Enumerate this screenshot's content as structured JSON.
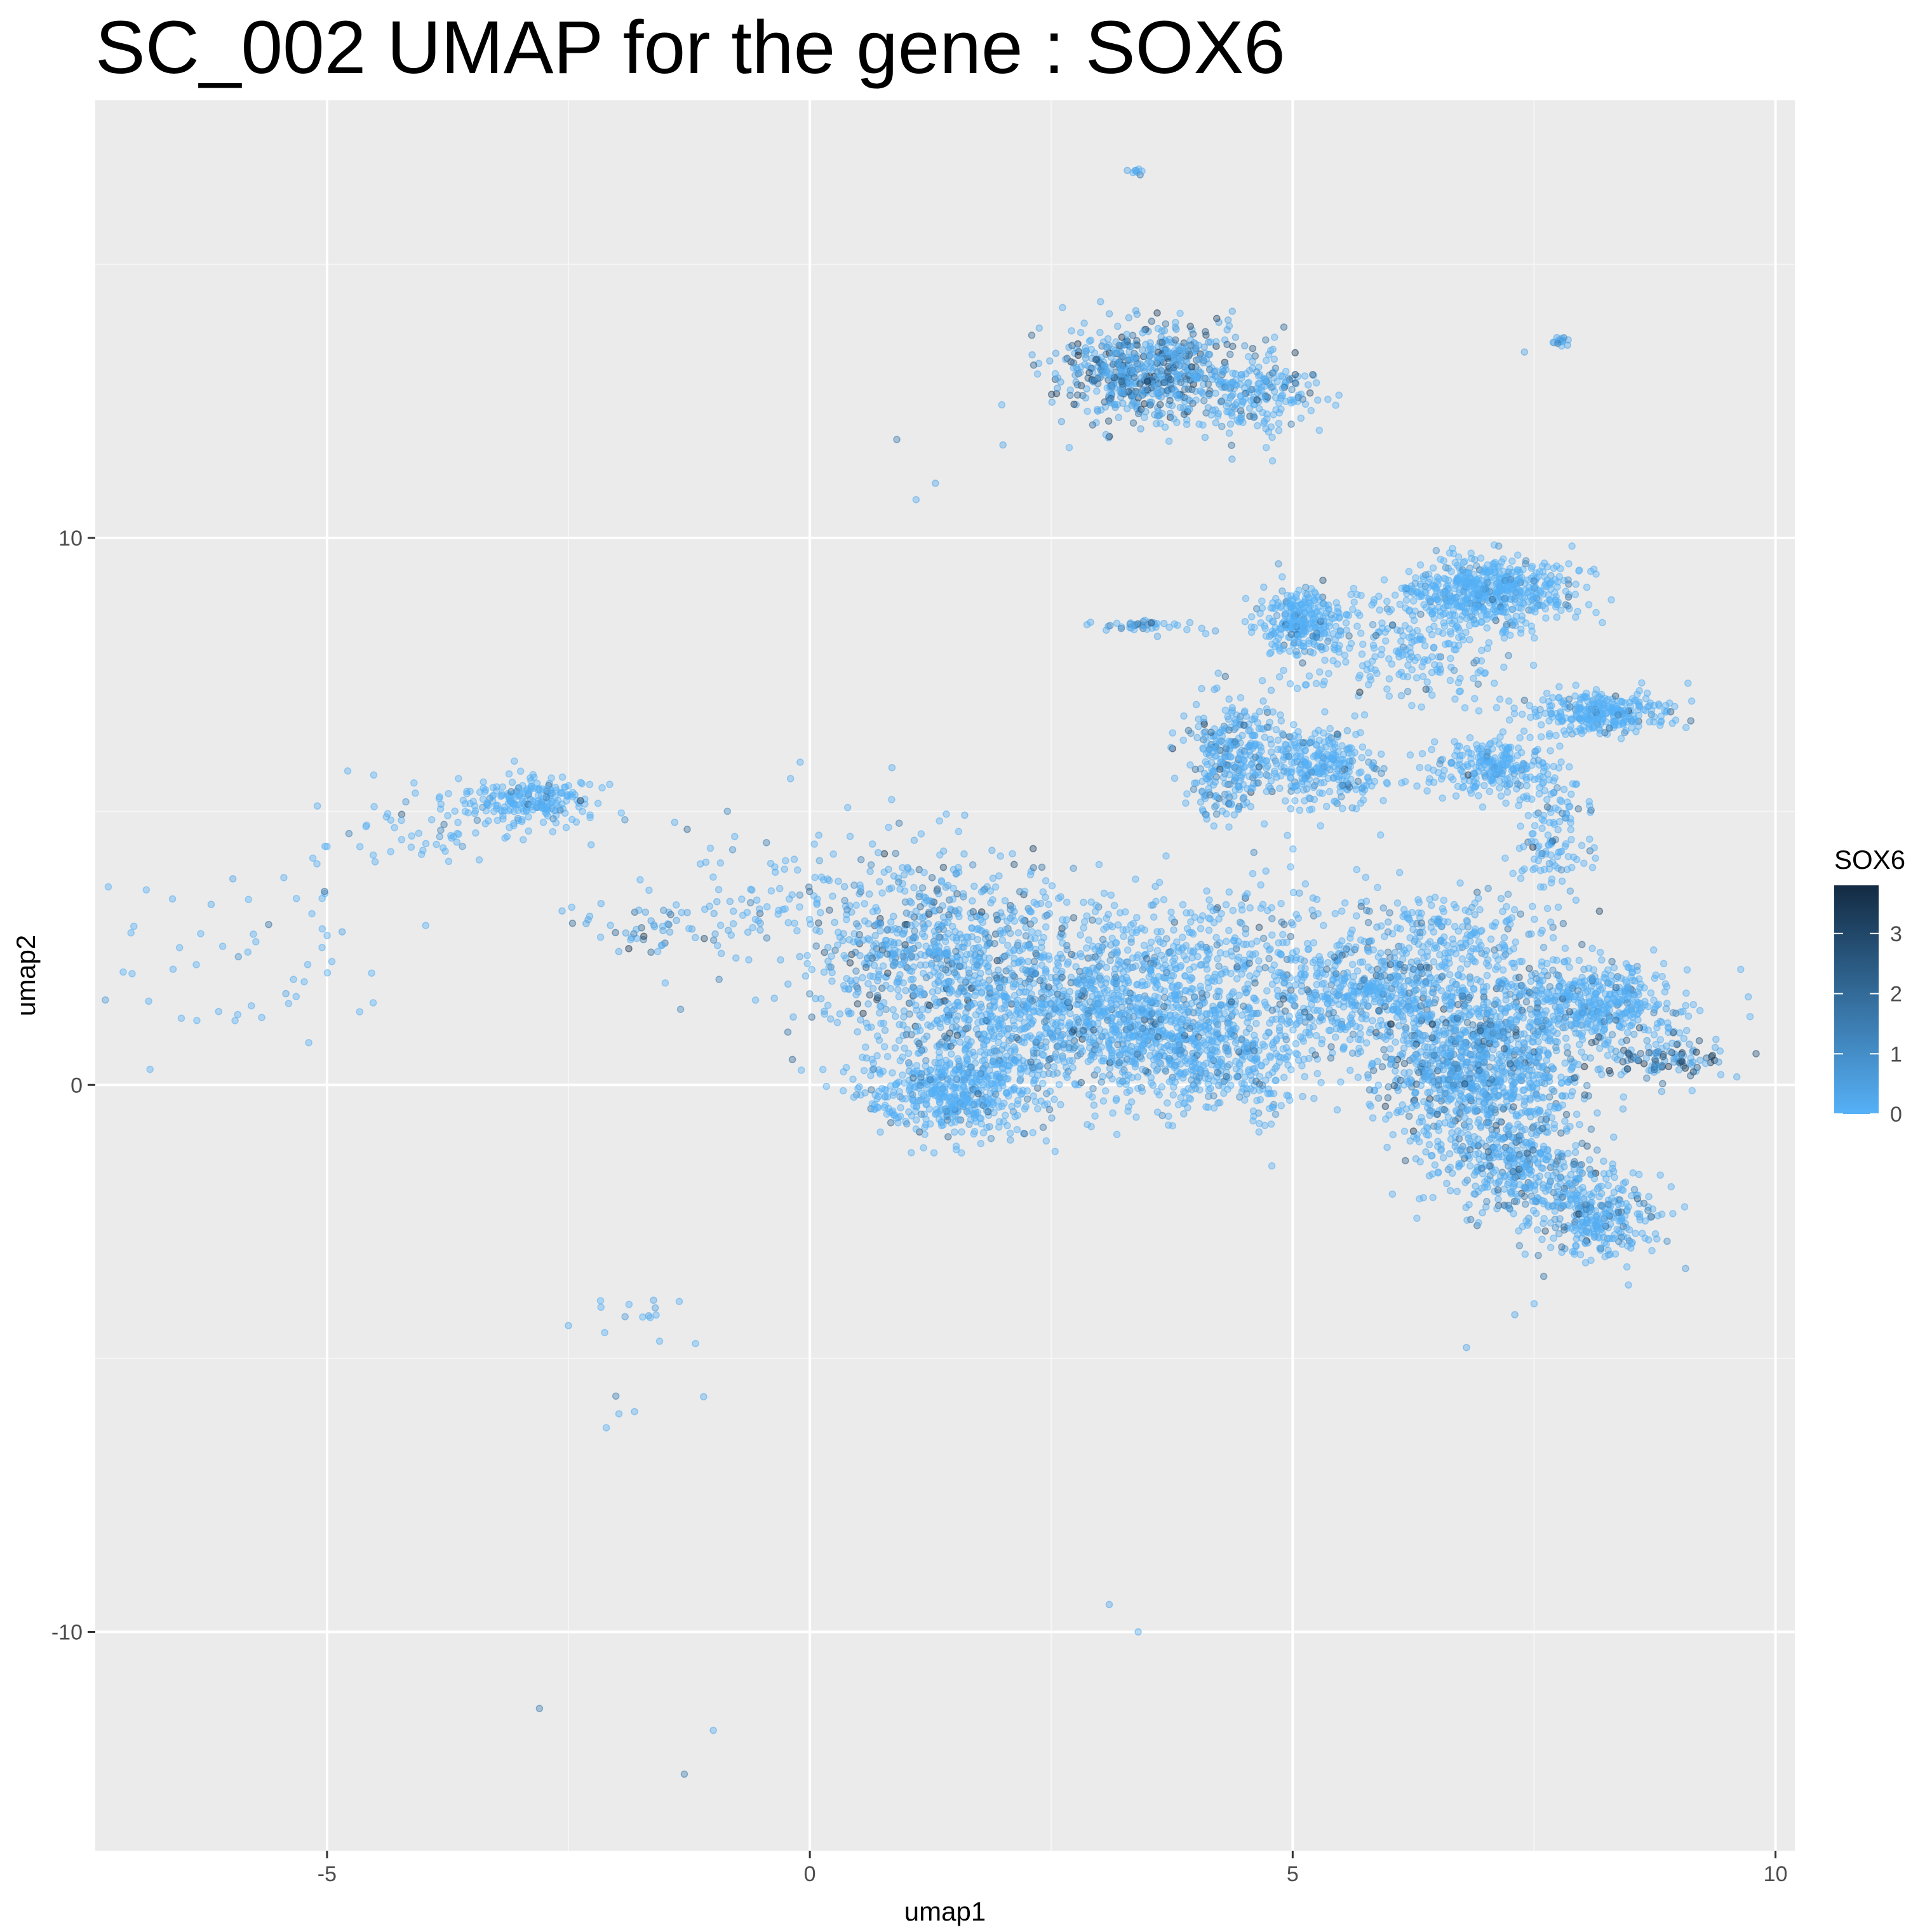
{
  "chart_data": {
    "type": "scatter",
    "title": "SC_002  UMAP for the gene :  SOX6",
    "xlabel": "umap1",
    "ylabel": "umap2",
    "xlim": [
      -7.4,
      10.2
    ],
    "ylim": [
      -14,
      18
    ],
    "x_ticks": [
      -5,
      0,
      5,
      10
    ],
    "y_ticks": [
      -10,
      0,
      10
    ],
    "x_tick_labels": [
      "-5",
      "0",
      "5",
      "10"
    ],
    "y_tick_labels": [
      "-10",
      "0",
      "10"
    ],
    "grid": true,
    "legend": {
      "title": "SOX6",
      "position": "right",
      "type": "colorbar",
      "range": [
        0,
        3.8
      ],
      "ticks": [
        0,
        1,
        2,
        3
      ],
      "tick_labels": [
        "0",
        "1",
        "2",
        "3"
      ],
      "low_color": "#56B1F7",
      "high_color": "#132B43"
    },
    "colors": {
      "panel": "#EBEBEB",
      "grid_major": "#FFFFFF",
      "grid_minor": "#F5F5F5"
    },
    "clusters": [
      {
        "cx": 3.5,
        "cy": 13.0,
        "sx": 0.45,
        "sy": 0.45,
        "n": 650,
        "expr": 1.4
      },
      {
        "cx": 4.6,
        "cy": 12.6,
        "sx": 0.35,
        "sy": 0.35,
        "n": 200,
        "expr": 0.5
      },
      {
        "cx": 3.4,
        "cy": 16.7,
        "sx": 0.04,
        "sy": 0.03,
        "n": 8,
        "expr": 0.2
      },
      {
        "cx": 7.8,
        "cy": 13.6,
        "sx": 0.05,
        "sy": 0.04,
        "n": 15,
        "expr": 1.2
      },
      {
        "cx": 3.4,
        "cy": 8.4,
        "sx": 0.3,
        "sy": 0.05,
        "n": 40,
        "expr": 0.6
      },
      {
        "cx": 5.1,
        "cy": 8.5,
        "sx": 0.22,
        "sy": 0.3,
        "n": 280,
        "expr": 0.1
      },
      {
        "cx": 7.0,
        "cy": 9.0,
        "sx": 0.45,
        "sy": 0.3,
        "n": 600,
        "expr": 0.05
      },
      {
        "cx": 6.2,
        "cy": 7.9,
        "sx": 0.55,
        "sy": 0.45,
        "n": 200,
        "expr": 0.1
      },
      {
        "cx": 4.4,
        "cy": 6.0,
        "sx": 0.25,
        "sy": 0.6,
        "n": 320,
        "expr": 0.6
      },
      {
        "cx": 5.3,
        "cy": 5.8,
        "sx": 0.3,
        "sy": 0.35,
        "n": 280,
        "expr": 0.2
      },
      {
        "cx": 7.0,
        "cy": 5.8,
        "sx": 0.35,
        "sy": 0.25,
        "n": 250,
        "expr": 0.15
      },
      {
        "cx": 8.2,
        "cy": 6.8,
        "sx": 0.4,
        "sy": 0.2,
        "n": 300,
        "expr": 0.1
      },
      {
        "cx": 7.7,
        "cy": 4.6,
        "sx": 0.2,
        "sy": 0.5,
        "n": 120,
        "expr": 0.2
      },
      {
        "cx": -2.9,
        "cy": 5.2,
        "sx": 0.35,
        "sy": 0.2,
        "n": 220,
        "expr": 0.15
      },
      {
        "cx": -3.9,
        "cy": 4.6,
        "sx": 0.6,
        "sy": 0.4,
        "n": 60,
        "expr": 0.3
      },
      {
        "cx": -5.6,
        "cy": 2.5,
        "sx": 0.9,
        "sy": 0.9,
        "n": 50,
        "expr": 0.3
      },
      {
        "cx": -1.5,
        "cy": 2.9,
        "sx": 0.5,
        "sy": 0.25,
        "n": 60,
        "expr": 1.2
      },
      {
        "cx": -0.5,
        "cy": 3.5,
        "sx": 0.7,
        "sy": 0.8,
        "n": 60,
        "expr": 0.4
      },
      {
        "cx": 1.2,
        "cy": 2.5,
        "sx": 0.7,
        "sy": 0.9,
        "n": 700,
        "expr": 0.9
      },
      {
        "cx": 1.5,
        "cy": -0.1,
        "sx": 0.45,
        "sy": 0.4,
        "n": 500,
        "expr": 0.15
      },
      {
        "cx": 2.7,
        "cy": 1.2,
        "sx": 0.8,
        "sy": 0.7,
        "n": 900,
        "expr": 0.4
      },
      {
        "cx": 4.1,
        "cy": 0.6,
        "sx": 0.6,
        "sy": 0.6,
        "n": 600,
        "expr": 0.3
      },
      {
        "cx": 3.8,
        "cy": 2.3,
        "sx": 1.1,
        "sy": 0.7,
        "n": 500,
        "expr": 0.3
      },
      {
        "cx": 5.8,
        "cy": 1.7,
        "sx": 0.6,
        "sy": 0.4,
        "n": 400,
        "expr": 0.3
      },
      {
        "cx": 6.9,
        "cy": 0.3,
        "sx": 0.55,
        "sy": 0.75,
        "n": 1100,
        "expr": 0.7
      },
      {
        "cx": 7.3,
        "cy": -1.5,
        "sx": 0.45,
        "sy": 0.45,
        "n": 350,
        "expr": 0.7
      },
      {
        "cx": 8.1,
        "cy": -2.4,
        "sx": 0.35,
        "sy": 0.4,
        "n": 300,
        "expr": 0.5
      },
      {
        "cx": 8.1,
        "cy": 1.5,
        "sx": 0.45,
        "sy": 0.35,
        "n": 450,
        "expr": 0.2
      },
      {
        "cx": 8.9,
        "cy": 0.5,
        "sx": 0.35,
        "sy": 0.25,
        "n": 120,
        "expr": 1.8
      },
      {
        "cx": 6.6,
        "cy": 2.6,
        "sx": 0.55,
        "sy": 0.5,
        "n": 250,
        "expr": 0.3
      },
      {
        "cx": -1.6,
        "cy": -4.2,
        "sx": 0.3,
        "sy": 0.2,
        "n": 14,
        "expr": 0.2
      },
      {
        "cx": -1.9,
        "cy": -6.2,
        "sx": 0.15,
        "sy": 0.3,
        "n": 4,
        "expr": 0.6
      }
    ],
    "outliers": [
      [
        -7.0,
        2.9,
        0.1
      ],
      [
        -6.6,
        3.4,
        0.1
      ],
      [
        -6.2,
        3.3,
        0.2
      ],
      [
        -5.2,
        2.2,
        0.1
      ],
      [
        -5.1,
        5.1,
        0.1
      ],
      [
        0.9,
        11.8,
        1.5
      ],
      [
        1.3,
        11.0,
        0.3
      ],
      [
        1.1,
        10.7,
        0.2
      ],
      [
        3.1,
        -9.5,
        0.3
      ],
      [
        3.4,
        -10.0,
        0.2
      ],
      [
        -2.8,
        -11.4,
        1.5
      ],
      [
        -1.3,
        -12.6,
        1.5
      ],
      [
        -1.0,
        -11.8,
        0.2
      ],
      [
        -2.5,
        -4.4,
        0.2
      ],
      [
        -1.1,
        -5.7,
        0.2
      ],
      [
        6.8,
        -4.8,
        0.3
      ],
      [
        7.3,
        -4.2,
        0.3
      ],
      [
        7.5,
        -4.0,
        0.1
      ],
      [
        7.6,
        -3.5,
        1.8
      ],
      [
        7.4,
        13.4,
        0.4
      ],
      [
        3.6,
        8.2,
        0.3
      ],
      [
        4.2,
        8.3,
        0.4
      ],
      [
        0.85,
        5.8,
        0.2
      ],
      [
        -0.1,
        5.9,
        0.1
      ],
      [
        -0.2,
        5.6,
        0.1
      ],
      [
        -1.4,
        4.8,
        0.2
      ],
      [
        -0.8,
        4.3,
        0.9
      ],
      [
        0.1,
        4.1,
        0.5
      ],
      [
        2.0,
        11.7,
        0.3
      ],
      [
        4.7,
        9.1,
        0.2
      ]
    ]
  }
}
